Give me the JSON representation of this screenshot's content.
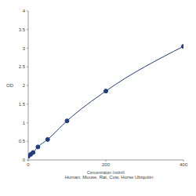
{
  "chart_data": {
    "type": "line",
    "title": "Human, Mouse, Rat, Cow, Horse Ubiquitin",
    "x_label": "Concentration (ng/ml)",
    "y_label": "OD",
    "x": [
      0,
      6.25,
      12.5,
      25,
      50,
      100,
      200,
      400
    ],
    "values": [
      0.1,
      0.15,
      0.2,
      0.35,
      0.55,
      1.05,
      1.85,
      3.05
    ],
    "color": "#1f3d7a",
    "marker": "circle",
    "xlim": [
      0,
      400
    ],
    "xticks": [
      0,
      200,
      400
    ],
    "ylim": [
      0,
      4
    ],
    "yticks": [
      0,
      0.5,
      1,
      1.5,
      2,
      2.5,
      3,
      3.5,
      4
    ],
    "grid": false
  }
}
